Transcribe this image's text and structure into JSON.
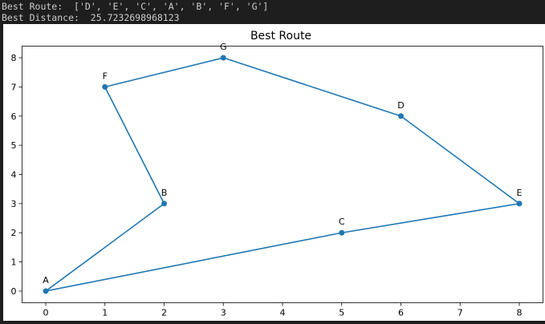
{
  "console": {
    "route_label": "Best Route:",
    "route_value": "['D', 'E', 'C', 'A', 'B', 'F', 'G']",
    "distance_label": "Best Distance:",
    "distance_value": "25.7232698968123"
  },
  "chart_data": {
    "type": "line",
    "title": "Best Route",
    "xlabel": "",
    "ylabel": "",
    "xlim": [
      -0.4,
      8.4
    ],
    "ylim": [
      -0.4,
      8.4
    ],
    "xticks": [
      0,
      1,
      2,
      3,
      4,
      5,
      6,
      7,
      8
    ],
    "yticks": [
      0,
      1,
      2,
      3,
      4,
      5,
      6,
      7,
      8
    ],
    "grid": false,
    "line_color": "#1f77b4",
    "points": [
      {
        "label": "D",
        "x": 6,
        "y": 6
      },
      {
        "label": "E",
        "x": 8,
        "y": 3
      },
      {
        "label": "C",
        "x": 5,
        "y": 2
      },
      {
        "label": "A",
        "x": 0,
        "y": 0
      },
      {
        "label": "B",
        "x": 2,
        "y": 3
      },
      {
        "label": "F",
        "x": 1,
        "y": 7
      },
      {
        "label": "G",
        "x": 3,
        "y": 8
      }
    ],
    "closed": true
  }
}
